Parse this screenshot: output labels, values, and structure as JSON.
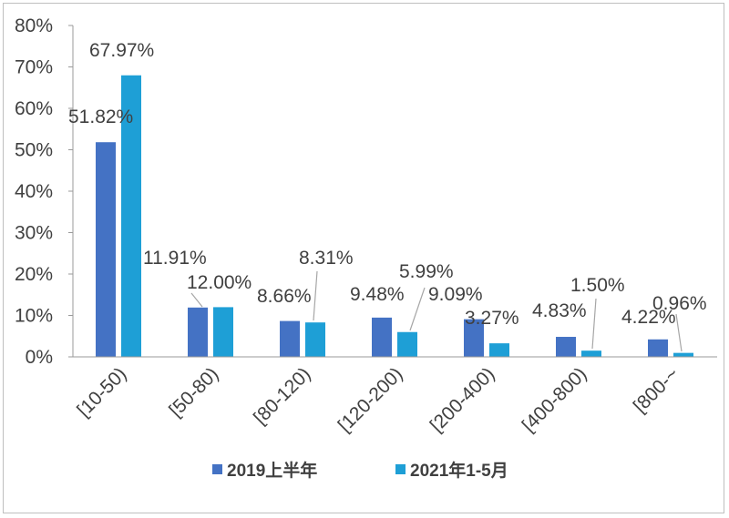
{
  "chart_data": {
    "type": "bar",
    "title": "",
    "xlabel": "",
    "ylabel": "",
    "categories": [
      "[10-50)",
      "[50-80)",
      "[80-120)",
      "[120-200)",
      "[200-400)",
      "[400-800)",
      "[800-~"
    ],
    "series": [
      {
        "name": "2019上半年",
        "color": "#4472c4",
        "values": [
          51.82,
          11.91,
          8.66,
          9.48,
          9.09,
          4.83,
          4.22
        ],
        "labels": [
          "51.82%",
          "11.91%",
          "8.66%",
          "9.48%",
          "9.09%",
          "4.83%",
          "4.22%"
        ]
      },
      {
        "name": "2021年1-5月",
        "color": "#1e9fd6",
        "values": [
          67.97,
          12.0,
          8.31,
          5.99,
          3.27,
          1.5,
          0.96
        ],
        "labels": [
          "67.97%",
          "12.00%",
          "8.31%",
          "5.99%",
          "3.27%",
          "1.50%",
          "0.96%"
        ]
      }
    ],
    "ylim": [
      0,
      80
    ],
    "y_ticks": [
      "0%",
      "10%",
      "20%",
      "30%",
      "40%",
      "50%",
      "60%",
      "70%",
      "80%"
    ],
    "grid": false,
    "legend_position": "bottom"
  }
}
